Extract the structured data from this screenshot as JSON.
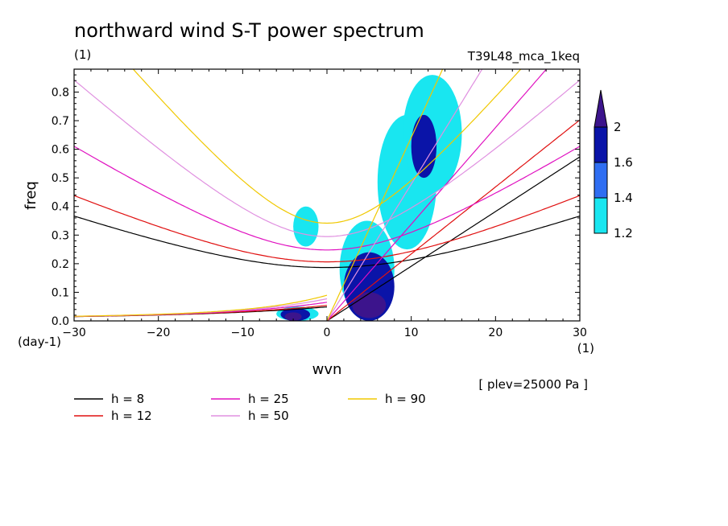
{
  "chart_data": {
    "type": "heatmap",
    "title": "northward wind S-T power spectrum",
    "subtitle": "(1)",
    "run_label": "T39L48_mca_1keq",
    "xlabel": "wvn",
    "ylabel": "freq",
    "x_unit": "(1)",
    "y_unit": "(day-1)",
    "level_note": "[ plev=25000 Pa ]",
    "xlim": [
      -30,
      30
    ],
    "ylim": [
      0,
      0.88
    ],
    "x_ticks": [
      -30,
      -20,
      -10,
      0,
      10,
      20,
      30
    ],
    "y_ticks": [
      0.0,
      0.1,
      0.2,
      0.3,
      0.4,
      0.5,
      0.6,
      0.7,
      0.8
    ],
    "colorbar": {
      "levels": [
        1.2,
        1.4,
        1.6,
        2
      ],
      "colors": [
        "#19e6f0",
        "#2f6ef2",
        "#0a14a8",
        "#3c148c"
      ]
    },
    "contour_regions": [
      {
        "level": 1.2,
        "x": [
          1.5,
          8
        ],
        "y": [
          0.01,
          0.35
        ]
      },
      {
        "level": 1.2,
        "x": [
          6,
          13
        ],
        "y": [
          0.25,
          0.72
        ]
      },
      {
        "level": 1.2,
        "x": [
          9,
          16
        ],
        "y": [
          0.45,
          0.86
        ]
      },
      {
        "level": 1.2,
        "x": [
          -6,
          -1
        ],
        "y": [
          0.0,
          0.05
        ]
      },
      {
        "level": 1.2,
        "x": [
          -4,
          -1
        ],
        "y": [
          0.26,
          0.4
        ]
      },
      {
        "level": 1.6,
        "x": [
          2,
          8
        ],
        "y": [
          0.0,
          0.24
        ]
      },
      {
        "level": 1.6,
        "x": [
          -5.5,
          -2
        ],
        "y": [
          0.0,
          0.045
        ]
      },
      {
        "level": 1.6,
        "x": [
          10,
          13
        ],
        "y": [
          0.5,
          0.72
        ]
      },
      {
        "level": 2,
        "x": [
          3,
          7
        ],
        "y": [
          0.01,
          0.1
        ]
      },
      {
        "level": 2,
        "x": [
          -5,
          -3
        ],
        "y": [
          0.0,
          0.03
        ]
      }
    ],
    "series": [
      {
        "name": "h = 8",
        "color": "#000000",
        "h": 8
      },
      {
        "name": "h = 12",
        "color": "#e01010",
        "h": 12
      },
      {
        "name": "h = 25",
        "color": "#e010c0",
        "h": 25
      },
      {
        "name": "h = 50",
        "color": "#e090e0",
        "h": 50
      },
      {
        "name": "h = 90",
        "color": "#f0c800",
        "h": 90
      }
    ],
    "grid": false
  }
}
